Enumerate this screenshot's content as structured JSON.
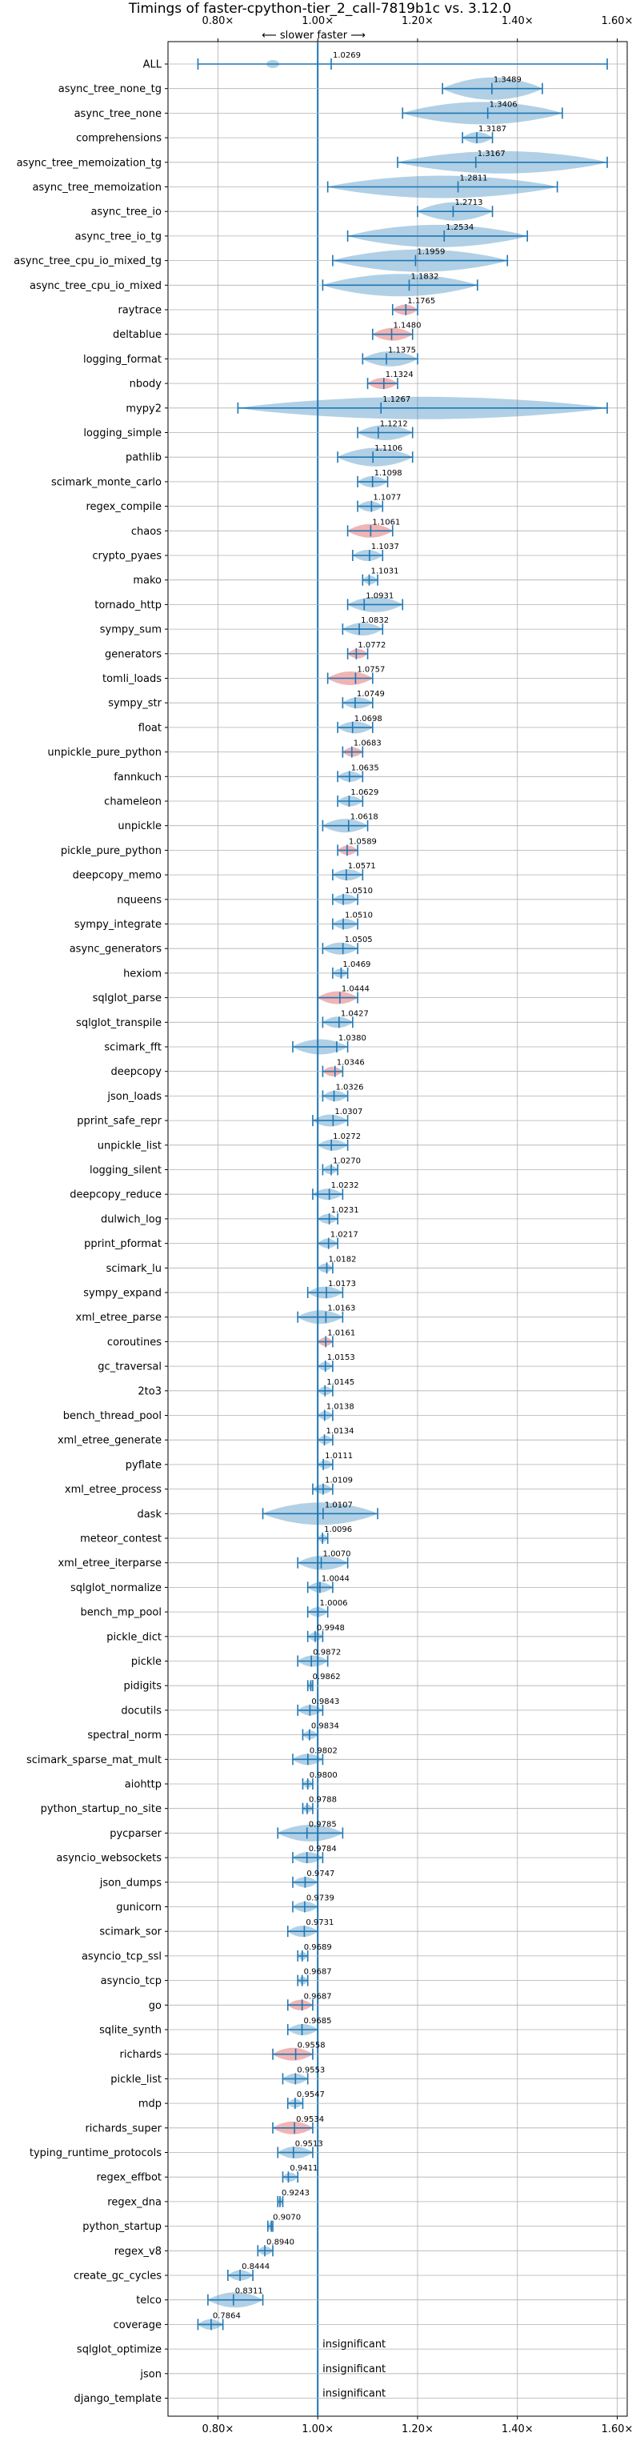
{
  "chart_data": {
    "type": "violin",
    "title": "Timings of faster-cpython-tier_2_call-7819b1c vs. 3.12.0",
    "direction_label": "⟵ slower  faster ⟶",
    "xlim": [
      0.7,
      1.62
    ],
    "x_ticks": [
      0.8,
      1.0,
      1.2,
      1.4,
      1.6
    ],
    "x_tick_labels": [
      "0.80×",
      "1.00×",
      "1.20×",
      "1.40×",
      "1.60×"
    ],
    "reference_line": 1.0,
    "grid": true,
    "colors": {
      "default": "#1f77b4",
      "highlight": "#d62728"
    },
    "insignificant_label": "insignificant",
    "benchmarks": [
      {
        "name": "ALL",
        "value": 1.0269,
        "label": "1.0269",
        "min": 0.76,
        "max": 1.58,
        "style": "all"
      },
      {
        "name": "async_tree_none_tg",
        "value": 1.3489,
        "label": "1.3489",
        "min": 1.25,
        "max": 1.45,
        "style": "blue"
      },
      {
        "name": "async_tree_none",
        "value": 1.3406,
        "label": "1.3406",
        "min": 1.17,
        "max": 1.49,
        "style": "blue"
      },
      {
        "name": "comprehensions",
        "value": 1.3187,
        "label": "1.3187",
        "min": 1.29,
        "max": 1.35,
        "style": "blue"
      },
      {
        "name": "async_tree_memoization_tg",
        "value": 1.3167,
        "label": "1.3167",
        "min": 1.16,
        "max": 1.58,
        "style": "blue"
      },
      {
        "name": "async_tree_memoization",
        "value": 1.2811,
        "label": "1.2811",
        "min": 1.02,
        "max": 1.48,
        "style": "blue"
      },
      {
        "name": "async_tree_io",
        "value": 1.2713,
        "label": "1.2713",
        "min": 1.2,
        "max": 1.35,
        "style": "blue"
      },
      {
        "name": "async_tree_io_tg",
        "value": 1.2534,
        "label": "1.2534",
        "min": 1.06,
        "max": 1.42,
        "style": "blue"
      },
      {
        "name": "async_tree_cpu_io_mixed_tg",
        "value": 1.1959,
        "label": "1.1959",
        "min": 1.03,
        "max": 1.38,
        "style": "blue"
      },
      {
        "name": "async_tree_cpu_io_mixed",
        "value": 1.1832,
        "label": "1.1832",
        "min": 1.01,
        "max": 1.32,
        "style": "blue"
      },
      {
        "name": "raytrace",
        "value": 1.1765,
        "label": "1.1765",
        "min": 1.15,
        "max": 1.2,
        "style": "red"
      },
      {
        "name": "deltablue",
        "value": 1.148,
        "label": "1.1480",
        "min": 1.11,
        "max": 1.19,
        "style": "red"
      },
      {
        "name": "logging_format",
        "value": 1.1375,
        "label": "1.1375",
        "min": 1.09,
        "max": 1.2,
        "style": "blue"
      },
      {
        "name": "nbody",
        "value": 1.1324,
        "label": "1.1324",
        "min": 1.1,
        "max": 1.16,
        "style": "red"
      },
      {
        "name": "mypy2",
        "value": 1.1267,
        "label": "1.1267",
        "min": 0.84,
        "max": 1.58,
        "style": "blue"
      },
      {
        "name": "logging_simple",
        "value": 1.1212,
        "label": "1.1212",
        "min": 1.08,
        "max": 1.19,
        "style": "blue"
      },
      {
        "name": "pathlib",
        "value": 1.1106,
        "label": "1.1106",
        "min": 1.04,
        "max": 1.19,
        "style": "blue"
      },
      {
        "name": "scimark_monte_carlo",
        "value": 1.1098,
        "label": "1.1098",
        "min": 1.08,
        "max": 1.14,
        "style": "blue"
      },
      {
        "name": "regex_compile",
        "value": 1.1077,
        "label": "1.1077",
        "min": 1.08,
        "max": 1.13,
        "style": "blue"
      },
      {
        "name": "chaos",
        "value": 1.1061,
        "label": "1.1061",
        "min": 1.06,
        "max": 1.15,
        "style": "red"
      },
      {
        "name": "crypto_pyaes",
        "value": 1.1037,
        "label": "1.1037",
        "min": 1.07,
        "max": 1.13,
        "style": "blue"
      },
      {
        "name": "mako",
        "value": 1.1031,
        "label": "1.1031",
        "min": 1.09,
        "max": 1.12,
        "style": "blue"
      },
      {
        "name": "tornado_http",
        "value": 1.0931,
        "label": "1.0931",
        "min": 1.06,
        "max": 1.17,
        "style": "blue"
      },
      {
        "name": "sympy_sum",
        "value": 1.0832,
        "label": "1.0832",
        "min": 1.05,
        "max": 1.13,
        "style": "blue"
      },
      {
        "name": "generators",
        "value": 1.0772,
        "label": "1.0772",
        "min": 1.06,
        "max": 1.1,
        "style": "red"
      },
      {
        "name": "tomli_loads",
        "value": 1.0757,
        "label": "1.0757",
        "min": 1.02,
        "max": 1.11,
        "style": "red"
      },
      {
        "name": "sympy_str",
        "value": 1.0749,
        "label": "1.0749",
        "min": 1.05,
        "max": 1.11,
        "style": "blue"
      },
      {
        "name": "float",
        "value": 1.0698,
        "label": "1.0698",
        "min": 1.04,
        "max": 1.11,
        "style": "blue"
      },
      {
        "name": "unpickle_pure_python",
        "value": 1.0683,
        "label": "1.0683",
        "min": 1.05,
        "max": 1.09,
        "style": "red"
      },
      {
        "name": "fannkuch",
        "value": 1.0635,
        "label": "1.0635",
        "min": 1.04,
        "max": 1.09,
        "style": "blue"
      },
      {
        "name": "chameleon",
        "value": 1.0629,
        "label": "1.0629",
        "min": 1.04,
        "max": 1.09,
        "style": "blue"
      },
      {
        "name": "unpickle",
        "value": 1.0618,
        "label": "1.0618",
        "min": 1.01,
        "max": 1.1,
        "style": "blue"
      },
      {
        "name": "pickle_pure_python",
        "value": 1.0589,
        "label": "1.0589",
        "min": 1.04,
        "max": 1.08,
        "style": "red"
      },
      {
        "name": "deepcopy_memo",
        "value": 1.0571,
        "label": "1.0571",
        "min": 1.03,
        "max": 1.09,
        "style": "blue"
      },
      {
        "name": "nqueens",
        "value": 1.051,
        "label": "1.0510",
        "min": 1.03,
        "max": 1.08,
        "style": "blue"
      },
      {
        "name": "sympy_integrate",
        "value": 1.051,
        "label": "1.0510",
        "min": 1.03,
        "max": 1.08,
        "style": "blue"
      },
      {
        "name": "async_generators",
        "value": 1.0505,
        "label": "1.0505",
        "min": 1.01,
        "max": 1.08,
        "style": "blue"
      },
      {
        "name": "hexiom",
        "value": 1.0469,
        "label": "1.0469",
        "min": 1.03,
        "max": 1.06,
        "style": "blue"
      },
      {
        "name": "sqlglot_parse",
        "value": 1.0444,
        "label": "1.0444",
        "min": 1.0,
        "max": 1.08,
        "style": "red"
      },
      {
        "name": "sqlglot_transpile",
        "value": 1.0427,
        "label": "1.0427",
        "min": 1.01,
        "max": 1.07,
        "style": "blue"
      },
      {
        "name": "scimark_fft",
        "value": 1.038,
        "label": "1.0380",
        "min": 0.95,
        "max": 1.06,
        "style": "blue"
      },
      {
        "name": "deepcopy",
        "value": 1.0346,
        "label": "1.0346",
        "min": 1.01,
        "max": 1.05,
        "style": "red"
      },
      {
        "name": "json_loads",
        "value": 1.0326,
        "label": "1.0326",
        "min": 1.01,
        "max": 1.06,
        "style": "blue"
      },
      {
        "name": "pprint_safe_repr",
        "value": 1.0307,
        "label": "1.0307",
        "min": 0.99,
        "max": 1.06,
        "style": "blue"
      },
      {
        "name": "unpickle_list",
        "value": 1.0272,
        "label": "1.0272",
        "min": 1.0,
        "max": 1.06,
        "style": "blue"
      },
      {
        "name": "logging_silent",
        "value": 1.027,
        "label": "1.0270",
        "min": 1.01,
        "max": 1.04,
        "style": "blue"
      },
      {
        "name": "deepcopy_reduce",
        "value": 1.0232,
        "label": "1.0232",
        "min": 0.99,
        "max": 1.05,
        "style": "blue"
      },
      {
        "name": "dulwich_log",
        "value": 1.0231,
        "label": "1.0231",
        "min": 1.0,
        "max": 1.04,
        "style": "blue"
      },
      {
        "name": "pprint_pformat",
        "value": 1.0217,
        "label": "1.0217",
        "min": 1.0,
        "max": 1.04,
        "style": "blue"
      },
      {
        "name": "scimark_lu",
        "value": 1.0182,
        "label": "1.0182",
        "min": 1.0,
        "max": 1.03,
        "style": "blue"
      },
      {
        "name": "sympy_expand",
        "value": 1.0173,
        "label": "1.0173",
        "min": 0.98,
        "max": 1.05,
        "style": "blue"
      },
      {
        "name": "xml_etree_parse",
        "value": 1.0163,
        "label": "1.0163",
        "min": 0.96,
        "max": 1.05,
        "style": "blue"
      },
      {
        "name": "coroutines",
        "value": 1.0161,
        "label": "1.0161",
        "min": 1.0,
        "max": 1.03,
        "style": "red"
      },
      {
        "name": "gc_traversal",
        "value": 1.0153,
        "label": "1.0153",
        "min": 1.0,
        "max": 1.03,
        "style": "blue"
      },
      {
        "name": "2to3",
        "value": 1.0145,
        "label": "1.0145",
        "min": 1.0,
        "max": 1.03,
        "style": "blue"
      },
      {
        "name": "bench_thread_pool",
        "value": 1.0138,
        "label": "1.0138",
        "min": 1.0,
        "max": 1.03,
        "style": "blue"
      },
      {
        "name": "xml_etree_generate",
        "value": 1.0134,
        "label": "1.0134",
        "min": 1.0,
        "max": 1.03,
        "style": "blue"
      },
      {
        "name": "pyflate",
        "value": 1.0111,
        "label": "1.0111",
        "min": 1.0,
        "max": 1.03,
        "style": "blue"
      },
      {
        "name": "xml_etree_process",
        "value": 1.0109,
        "label": "1.0109",
        "min": 0.99,
        "max": 1.03,
        "style": "blue"
      },
      {
        "name": "dask",
        "value": 1.0107,
        "label": "1.0107",
        "min": 0.89,
        "max": 1.12,
        "style": "blue"
      },
      {
        "name": "meteor_contest",
        "value": 1.0096,
        "label": "1.0096",
        "min": 1.0,
        "max": 1.02,
        "style": "blue"
      },
      {
        "name": "xml_etree_iterparse",
        "value": 1.007,
        "label": "1.0070",
        "min": 0.96,
        "max": 1.06,
        "style": "blue"
      },
      {
        "name": "sqlglot_normalize",
        "value": 1.0044,
        "label": "1.0044",
        "min": 0.98,
        "max": 1.03,
        "style": "blue"
      },
      {
        "name": "bench_mp_pool",
        "value": 1.0006,
        "label": "1.0006",
        "min": 0.98,
        "max": 1.02,
        "style": "blue"
      },
      {
        "name": "pickle_dict",
        "value": 0.9948,
        "label": "0.9948",
        "min": 0.98,
        "max": 1.01,
        "style": "blue"
      },
      {
        "name": "pickle",
        "value": 0.9872,
        "label": "0.9872",
        "min": 0.96,
        "max": 1.02,
        "style": "blue"
      },
      {
        "name": "pidigits",
        "value": 0.9862,
        "label": "0.9862",
        "min": 0.98,
        "max": 0.99,
        "style": "blue"
      },
      {
        "name": "docutils",
        "value": 0.9843,
        "label": "0.9843",
        "min": 0.96,
        "max": 1.01,
        "style": "blue"
      },
      {
        "name": "spectral_norm",
        "value": 0.9834,
        "label": "0.9834",
        "min": 0.97,
        "max": 1.0,
        "style": "blue"
      },
      {
        "name": "scimark_sparse_mat_mult",
        "value": 0.9802,
        "label": "0.9802",
        "min": 0.95,
        "max": 1.01,
        "style": "blue"
      },
      {
        "name": "aiohttp",
        "value": 0.98,
        "label": "0.9800",
        "min": 0.97,
        "max": 0.99,
        "style": "blue"
      },
      {
        "name": "python_startup_no_site",
        "value": 0.9788,
        "label": "0.9788",
        "min": 0.97,
        "max": 0.99,
        "style": "blue"
      },
      {
        "name": "pycparser",
        "value": 0.9785,
        "label": "0.9785",
        "min": 0.92,
        "max": 1.05,
        "style": "blue"
      },
      {
        "name": "asyncio_websockets",
        "value": 0.9784,
        "label": "0.9784",
        "min": 0.95,
        "max": 1.01,
        "style": "blue"
      },
      {
        "name": "json_dumps",
        "value": 0.9747,
        "label": "0.9747",
        "min": 0.95,
        "max": 1.0,
        "style": "blue"
      },
      {
        "name": "gunicorn",
        "value": 0.9739,
        "label": "0.9739",
        "min": 0.95,
        "max": 1.0,
        "style": "blue"
      },
      {
        "name": "scimark_sor",
        "value": 0.9731,
        "label": "0.9731",
        "min": 0.94,
        "max": 1.0,
        "style": "blue"
      },
      {
        "name": "asyncio_tcp_ssl",
        "value": 0.9689,
        "label": "0.9689",
        "min": 0.96,
        "max": 0.98,
        "style": "blue"
      },
      {
        "name": "asyncio_tcp",
        "value": 0.9687,
        "label": "0.9687",
        "min": 0.96,
        "max": 0.98,
        "style": "blue"
      },
      {
        "name": "go",
        "value": 0.9687,
        "label": "0.9687",
        "min": 0.94,
        "max": 0.99,
        "style": "red"
      },
      {
        "name": "sqlite_synth",
        "value": 0.9685,
        "label": "0.9685",
        "min": 0.94,
        "max": 1.0,
        "style": "blue"
      },
      {
        "name": "richards",
        "value": 0.9558,
        "label": "0.9558",
        "min": 0.91,
        "max": 0.99,
        "style": "red"
      },
      {
        "name": "pickle_list",
        "value": 0.9553,
        "label": "0.9553",
        "min": 0.93,
        "max": 0.98,
        "style": "blue"
      },
      {
        "name": "mdp",
        "value": 0.9547,
        "label": "0.9547",
        "min": 0.94,
        "max": 0.97,
        "style": "blue"
      },
      {
        "name": "richards_super",
        "value": 0.9534,
        "label": "0.9534",
        "min": 0.91,
        "max": 0.99,
        "style": "red"
      },
      {
        "name": "typing_runtime_protocols",
        "value": 0.9513,
        "label": "0.9513",
        "min": 0.92,
        "max": 0.99,
        "style": "blue"
      },
      {
        "name": "regex_effbot",
        "value": 0.9411,
        "label": "0.9411",
        "min": 0.93,
        "max": 0.96,
        "style": "blue"
      },
      {
        "name": "regex_dna",
        "value": 0.9243,
        "label": "0.9243",
        "min": 0.92,
        "max": 0.93,
        "style": "blue"
      },
      {
        "name": "python_startup",
        "value": 0.907,
        "label": "0.9070",
        "min": 0.9,
        "max": 0.91,
        "style": "blue"
      },
      {
        "name": "regex_v8",
        "value": 0.894,
        "label": "0.8940",
        "min": 0.88,
        "max": 0.91,
        "style": "blue"
      },
      {
        "name": "create_gc_cycles",
        "value": 0.8444,
        "label": "0.8444",
        "min": 0.82,
        "max": 0.87,
        "style": "blue"
      },
      {
        "name": "telco",
        "value": 0.8311,
        "label": "0.8311",
        "min": 0.78,
        "max": 0.89,
        "style": "blue"
      },
      {
        "name": "coverage",
        "value": 0.7864,
        "label": "0.7864",
        "min": 0.76,
        "max": 0.81,
        "style": "blue"
      },
      {
        "name": "sqlglot_optimize",
        "value": null,
        "label": "",
        "insignificant": true
      },
      {
        "name": "json",
        "value": null,
        "label": "",
        "insignificant": true
      },
      {
        "name": "django_template",
        "value": null,
        "label": "",
        "insignificant": true
      }
    ]
  }
}
